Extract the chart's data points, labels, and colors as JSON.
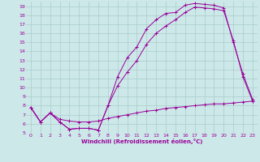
{
  "xlabel": "Windchill (Refroidissement éolien,°C)",
  "bg_color": "#cce8e8",
  "line_color": "#990099",
  "grid_color": "#aacccc",
  "xlim": [
    -0.5,
    23.5
  ],
  "ylim": [
    5,
    19.5
  ],
  "xticks": [
    0,
    1,
    2,
    3,
    4,
    5,
    6,
    7,
    8,
    9,
    10,
    11,
    12,
    13,
    14,
    15,
    16,
    17,
    18,
    19,
    20,
    21,
    22,
    23
  ],
  "yticks": [
    5,
    6,
    7,
    8,
    9,
    10,
    11,
    12,
    13,
    14,
    15,
    16,
    17,
    18,
    19
  ],
  "curve1_x": [
    0,
    1,
    2,
    3,
    4,
    5,
    6,
    7,
    8,
    9,
    10,
    11,
    12,
    13,
    14,
    15,
    16,
    17,
    18,
    19,
    20,
    21,
    22,
    23
  ],
  "curve1_y": [
    7.8,
    6.2,
    7.2,
    6.2,
    5.4,
    5.5,
    5.5,
    5.3,
    8.0,
    11.2,
    13.3,
    14.5,
    16.5,
    17.5,
    18.2,
    18.3,
    19.1,
    19.3,
    19.2,
    19.1,
    18.8,
    15.0,
    11.5,
    8.7
  ],
  "curve2_x": [
    0,
    1,
    2,
    3,
    4,
    5,
    6,
    7,
    8,
    9,
    10,
    11,
    12,
    13,
    14,
    15,
    16,
    17,
    18,
    19,
    20,
    21,
    22,
    23
  ],
  "curve2_y": [
    7.8,
    6.2,
    7.2,
    6.2,
    5.4,
    5.5,
    5.5,
    5.3,
    8.0,
    10.2,
    11.7,
    13.0,
    14.8,
    16.0,
    16.8,
    17.5,
    18.3,
    18.9,
    18.8,
    18.7,
    18.5,
    15.2,
    11.2,
    8.5
  ],
  "curve3_x": [
    0,
    1,
    2,
    3,
    4,
    5,
    6,
    7,
    8,
    9,
    10,
    11,
    12,
    13,
    14,
    15,
    16,
    17,
    18,
    19,
    20,
    21,
    22,
    23
  ],
  "curve3_y": [
    7.8,
    6.2,
    7.2,
    6.5,
    6.3,
    6.2,
    6.2,
    6.3,
    6.6,
    6.8,
    7.0,
    7.2,
    7.4,
    7.5,
    7.7,
    7.8,
    7.9,
    8.0,
    8.1,
    8.2,
    8.2,
    8.3,
    8.4,
    8.5
  ]
}
